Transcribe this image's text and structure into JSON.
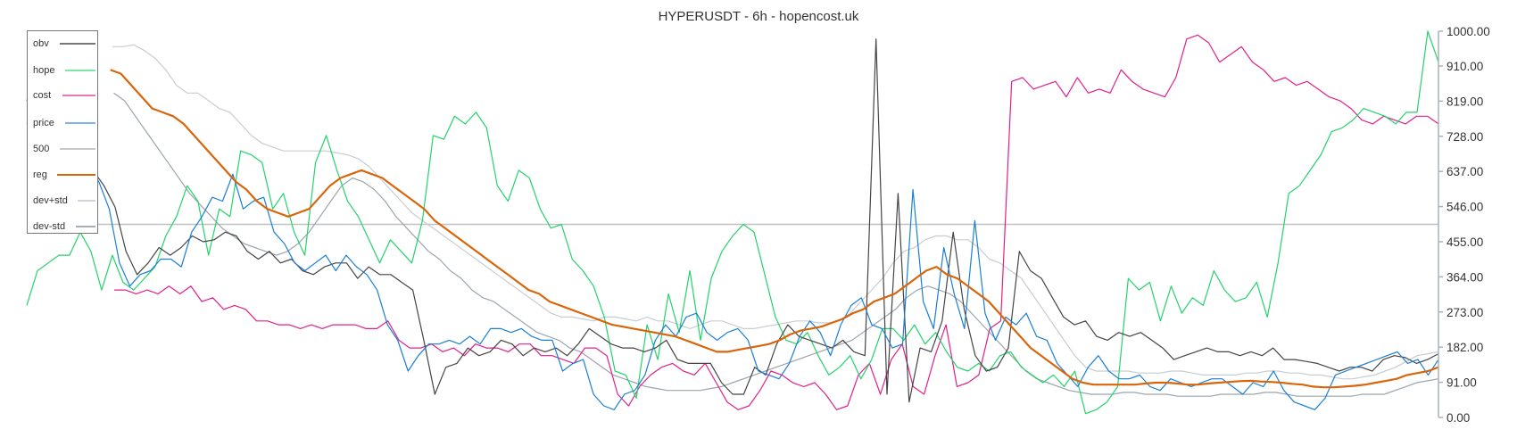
{
  "title": "HYPERUSDT - 6h - hopencost.uk",
  "chart_data": {
    "type": "line",
    "title": "HYPERUSDT - 6h - hopencost.uk",
    "xlabel": "",
    "ylabel": "",
    "ylim": [
      0,
      1000
    ],
    "y_ticks": [
      "0.00",
      "91.00",
      "182.00",
      "273.00",
      "364.00",
      "455.00",
      "546.00",
      "637.00",
      "728.00",
      "819.00",
      "910.00",
      "1000.00"
    ],
    "y_axis_position": "right",
    "grid": false,
    "legend_position": "top-left",
    "reference_line": {
      "name": "500",
      "value": 500,
      "color": "#c0c0c0"
    },
    "series": [
      {
        "name": "obv",
        "color": "#444444",
        "width": 1.2,
        "values": [
          760,
          790,
          770,
          700,
          710,
          690,
          640,
          600,
          545,
          430,
          370,
          400,
          440,
          420,
          440,
          470,
          455,
          460,
          480,
          470,
          430,
          410,
          430,
          400,
          410,
          380,
          370,
          390,
          400,
          400,
          360,
          390,
          370,
          370,
          350,
          330,
          200,
          60,
          130,
          140,
          180,
          160,
          170,
          200,
          190,
          160,
          180,
          170,
          180,
          160,
          190,
          230,
          210,
          190,
          180,
          180,
          170,
          180,
          200,
          150,
          140,
          140,
          140,
          90,
          60,
          60,
          130,
          110,
          190,
          240,
          210,
          200,
          190,
          180,
          200,
          170,
          160,
          980,
          60,
          580,
          40,
          180,
          170,
          250,
          480,
          280,
          160,
          120,
          130,
          180,
          430,
          380,
          360,
          310,
          260,
          240,
          250,
          210,
          200,
          220,
          210,
          220,
          200,
          180,
          150,
          160,
          170,
          180,
          170,
          170,
          160,
          170,
          160,
          180,
          150,
          150,
          145,
          140,
          130,
          120,
          130,
          130,
          120,
          150,
          160,
          155,
          140,
          150,
          165
        ]
      },
      {
        "name": "hope",
        "color": "#22d36a",
        "width": 1.2,
        "values": [
          290,
          380,
          400,
          420,
          420,
          480,
          430,
          330,
          420,
          350,
          330,
          360,
          390,
          470,
          520,
          600,
          560,
          420,
          540,
          520,
          690,
          680,
          660,
          540,
          580,
          480,
          420,
          660,
          730,
          640,
          560,
          520,
          460,
          400,
          460,
          430,
          400,
          510,
          730,
          720,
          780,
          760,
          790,
          750,
          600,
          560,
          640,
          620,
          540,
          490,
          500,
          410,
          380,
          340,
          260,
          120,
          110,
          50,
          240,
          150,
          320,
          220,
          380,
          200,
          360,
          430,
          470,
          500,
          480,
          370,
          260,
          200,
          190,
          220,
          160,
          110,
          130,
          160,
          100,
          150,
          230,
          230,
          200,
          240,
          190,
          220,
          170,
          130,
          120,
          140,
          120,
          160,
          170,
          130,
          110,
          90,
          110,
          80,
          120,
          10,
          20,
          40,
          80,
          360,
          330,
          350,
          250,
          340,
          270,
          310,
          290,
          380,
          330,
          300,
          310,
          350,
          260,
          400,
          580,
          600,
          640,
          680,
          740,
          750,
          770,
          800,
          790,
          780,
          760,
          790,
          790,
          1000,
          920
        ]
      },
      {
        "name": "cost",
        "color": "#e0208a",
        "width": 1.2,
        "values": [
          null,
          null,
          null,
          null,
          null,
          null,
          null,
          null,
          330,
          330,
          320,
          330,
          320,
          340,
          320,
          340,
          300,
          310,
          280,
          290,
          280,
          250,
          250,
          240,
          240,
          230,
          240,
          230,
          240,
          240,
          240,
          230,
          230,
          250,
          200,
          180,
          180,
          190,
          170,
          180,
          160,
          190,
          180,
          180,
          170,
          190,
          190,
          160,
          160,
          150,
          140,
          180,
          180,
          160,
          60,
          30,
          80,
          110,
          130,
          140,
          120,
          110,
          140,
          90,
          40,
          20,
          30,
          70,
          120,
          110,
          90,
          80,
          90,
          60,
          20,
          30,
          110,
          140,
          60,
          150,
          190,
          80,
          60,
          160,
          240,
          80,
          90,
          110,
          230,
          250,
          870,
          880,
          850,
          860,
          870,
          830,
          880,
          840,
          850,
          840,
          900,
          870,
          850,
          840,
          830,
          880,
          980,
          990,
          970,
          920,
          940,
          960,
          920,
          900,
          870,
          880,
          860,
          870,
          850,
          830,
          820,
          800,
          770,
          760,
          780,
          770,
          760,
          780,
          780,
          760
        ]
      },
      {
        "name": "price",
        "color": "#1a7fd6",
        "width": 1.2,
        "values": [
          820,
          900,
          820,
          710,
          730,
          740,
          650,
          610,
          540,
          400,
          340,
          370,
          380,
          410,
          410,
          390,
          480,
          520,
          570,
          560,
          630,
          540,
          560,
          570,
          480,
          450,
          400,
          380,
          400,
          420,
          380,
          420,
          390,
          370,
          330,
          240,
          200,
          120,
          160,
          190,
          190,
          200,
          190,
          210,
          190,
          230,
          230,
          220,
          230,
          210,
          200,
          200,
          120,
          140,
          150,
          60,
          30,
          20,
          60,
          70,
          110,
          200,
          240,
          210,
          260,
          270,
          220,
          200,
          220,
          230,
          200,
          120,
          110,
          100,
          140,
          210,
          250,
          220,
          160,
          240,
          290,
          310,
          240,
          230,
          180,
          190,
          590,
          300,
          230,
          440,
          320,
          230,
          510,
          270,
          200,
          260,
          240,
          270,
          210,
          200,
          140,
          110,
          80,
          130,
          160,
          120,
          100,
          100,
          110,
          80,
          70,
          100,
          90,
          80,
          90,
          100,
          100,
          80,
          60,
          90,
          80,
          120,
          70,
          40,
          30,
          20,
          50,
          110,
          120,
          130,
          140,
          150,
          160,
          170,
          140,
          150,
          110,
          150
        ]
      },
      {
        "name": "500",
        "color": "#c0c0c0",
        "width": 1.5,
        "values": "constant 500"
      },
      {
        "name": "reg",
        "color": "#d9650b",
        "width": 2.2,
        "values": [
          null,
          null,
          null,
          null,
          null,
          null,
          null,
          null,
          900,
          890,
          860,
          830,
          800,
          790,
          780,
          760,
          730,
          700,
          670,
          640,
          610,
          590,
          560,
          540,
          530,
          520,
          530,
          540,
          570,
          600,
          620,
          630,
          640,
          630,
          620,
          600,
          580,
          560,
          540,
          510,
          490,
          470,
          450,
          430,
          410,
          390,
          370,
          350,
          330,
          320,
          300,
          290,
          280,
          270,
          260,
          250,
          240,
          235,
          230,
          225,
          220,
          215,
          210,
          200,
          190,
          180,
          170,
          170,
          175,
          180,
          185,
          190,
          200,
          215,
          225,
          230,
          235,
          245,
          255,
          270,
          280,
          300,
          310,
          320,
          340,
          360,
          380,
          390,
          370,
          360,
          340,
          320,
          300,
          270,
          240,
          210,
          180,
          160,
          140,
          120,
          100,
          90,
          85,
          85,
          85,
          85,
          85,
          88,
          90,
          90,
          88,
          85,
          85,
          88,
          90,
          92,
          94,
          95,
          93,
          92,
          90,
          87,
          85,
          80,
          78,
          78,
          80,
          82,
          85,
          90,
          95,
          100,
          110,
          115,
          120,
          130
        ]
      },
      {
        "name": "dev+std",
        "color": "#c7cdd3",
        "width": 1.2,
        "values": [
          null,
          null,
          null,
          null,
          null,
          null,
          null,
          null,
          960,
          960,
          965,
          950,
          930,
          900,
          860,
          840,
          840,
          820,
          800,
          790,
          760,
          730,
          710,
          700,
          690,
          690,
          690,
          690,
          690,
          685,
          680,
          670,
          650,
          620,
          590,
          560,
          530,
          510,
          490,
          470,
          450,
          430,
          410,
          390,
          370,
          350,
          330,
          310,
          290,
          270,
          260,
          260,
          255,
          250,
          260,
          260,
          255,
          250,
          260,
          250,
          250,
          240,
          230,
          240,
          250,
          250,
          240,
          230,
          230,
          235,
          240,
          245,
          250,
          250,
          245,
          245,
          250,
          270,
          300,
          330,
          360,
          400,
          430,
          440,
          460,
          470,
          470,
          460,
          460,
          440,
          410,
          400,
          380,
          360,
          320,
          280,
          240,
          200,
          160,
          130,
          120,
          120,
          120,
          120,
          115,
          115,
          115,
          120,
          120,
          115,
          110,
          110,
          110,
          110,
          115,
          115,
          120,
          120,
          115,
          115,
          110,
          110,
          105,
          100,
          100,
          105,
          110,
          120,
          130,
          145,
          160,
          165,
          170
        ]
      },
      {
        "name": "dev-std",
        "color": "#9aa5ae",
        "width": 1.2,
        "values": [
          null,
          null,
          null,
          null,
          null,
          null,
          null,
          null,
          840,
          820,
          780,
          740,
          700,
          660,
          620,
          580,
          550,
          520,
          490,
          470,
          450,
          440,
          430,
          420,
          430,
          450,
          480,
          520,
          560,
          600,
          620,
          610,
          590,
          560,
          520,
          490,
          460,
          430,
          410,
          380,
          360,
          330,
          310,
          300,
          280,
          260,
          240,
          220,
          210,
          200,
          180,
          170,
          150,
          130,
          110,
          100,
          90,
          80,
          75,
          70,
          70,
          70,
          70,
          75,
          80,
          90,
          100,
          110,
          120,
          130,
          140,
          150,
          160,
          170,
          180,
          190,
          200,
          220,
          240,
          260,
          280,
          310,
          330,
          340,
          330,
          320,
          300,
          270,
          240,
          210,
          180,
          150,
          120,
          100,
          90,
          80,
          70,
          65,
          60,
          60,
          60,
          65,
          65,
          60,
          60,
          60,
          55,
          55,
          55,
          55,
          60,
          60,
          60,
          60,
          65,
          65,
          60,
          55,
          55,
          55,
          55,
          55,
          55,
          60,
          60,
          60,
          70,
          80,
          90,
          95,
          100
        ]
      }
    ]
  },
  "legend": {
    "items": [
      {
        "label": "obv",
        "color": "#777777"
      },
      {
        "label": "hope",
        "color": "#7de8a6"
      },
      {
        "label": "cost",
        "color": "#e879b8"
      },
      {
        "label": "price",
        "color": "#7ab4e8"
      },
      {
        "label": "500",
        "color": "#c8c8c8"
      },
      {
        "label": "reg",
        "color": "#d9650b"
      },
      {
        "label": "dev+std",
        "color": "#cfd5da"
      },
      {
        "label": "dev-std",
        "color": "#a5b0b8"
      }
    ]
  }
}
